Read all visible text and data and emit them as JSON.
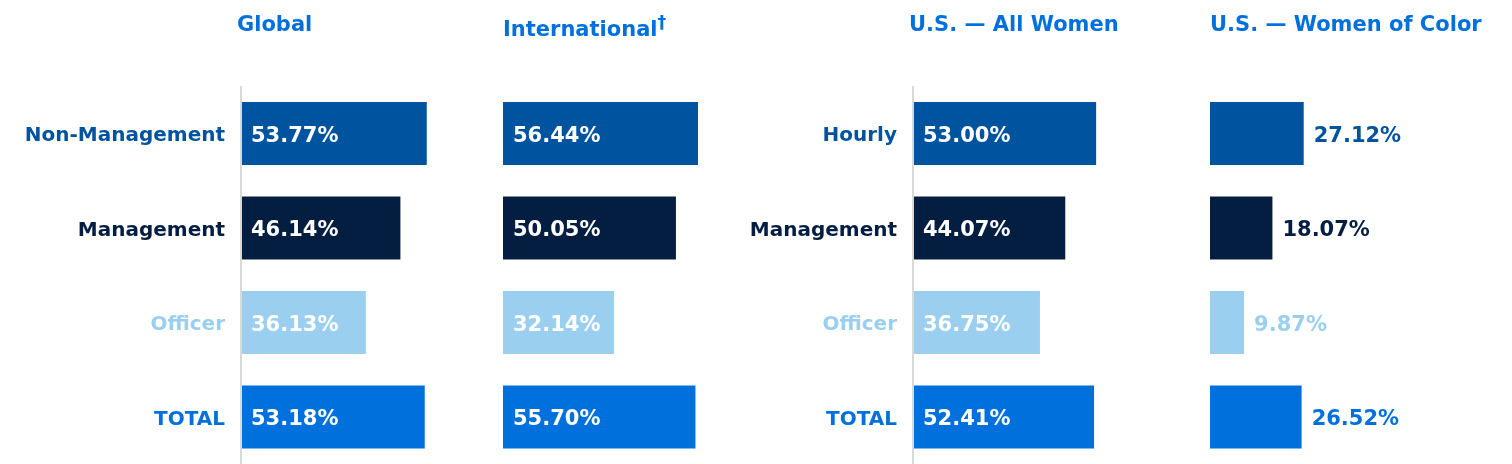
{
  "chart_data": [
    {
      "type": "bar",
      "orientation": "horizontal",
      "title": "Global",
      "categories": [
        "Non-Management",
        "Management",
        "Officer",
        "TOTAL"
      ],
      "values": [
        53.77,
        46.14,
        36.13,
        53.18
      ],
      "colors": [
        "#00539f",
        "#041e42",
        "#9bcff0",
        "#0071dc"
      ],
      "value_labels": [
        "53.77%",
        "46.14%",
        "36.13%",
        "53.18%"
      ],
      "tick_labels": "y"
    },
    {
      "type": "bar",
      "orientation": "horizontal",
      "title": "International$^{†}$",
      "categories": [
        null,
        null,
        null,
        null
      ],
      "values": [
        56.44,
        50.05,
        32.14,
        55.7
      ],
      "colors": [
        "#00539f",
        "#041e42",
        "#9bcff0",
        "#0071dc"
      ],
      "value_labels": [
        "56.44%",
        "50.05%",
        "32.14%",
        "55.70%"
      ],
      "tick_labels": false
    },
    {
      "type": "bar",
      "orientation": "horizontal",
      "title": "U.S. — All Women",
      "categories": [
        "Hourly",
        "Management",
        "Officer",
        "TOTAL"
      ],
      "values": [
        53.0,
        44.07,
        36.75,
        52.41
      ],
      "colors": [
        "#00539f",
        "#041e42",
        "#9bcff0",
        "#0071dc"
      ],
      "value_labels": [
        "53.00%",
        "44.07%",
        "36.75%",
        "52.41%"
      ],
      "tick_labels": "y"
    },
    {
      "type": "bar",
      "orientation": "horizontal",
      "title": "U.S. — Women of Color",
      "categories": [
        null,
        null,
        null,
        null
      ],
      "values": [
        27.12,
        18.07,
        9.87,
        26.52
      ],
      "colors": [
        "#00539f",
        "#041e42",
        "#9bcff0",
        "#0071dc"
      ],
      "value_labels": [
        "27.12%",
        "18.07%",
        "9.87%",
        "26.52%"
      ],
      "tick_labels": false
    }
  ]
}
